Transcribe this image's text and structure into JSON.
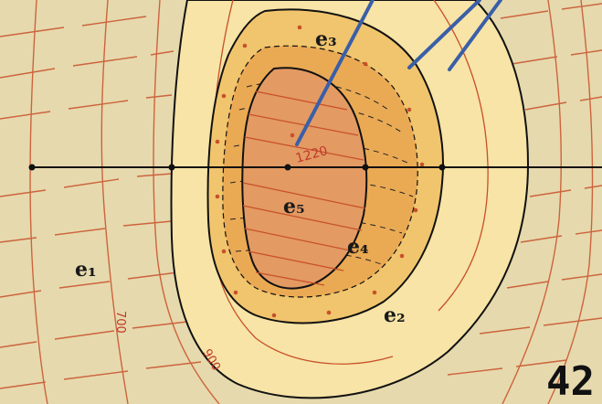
{
  "zones": [
    {
      "id": "e1",
      "label": "e₁",
      "fill": "#e6d9ad"
    },
    {
      "id": "e2",
      "label": "e₂",
      "fill": "#f7e4a6"
    },
    {
      "id": "e3",
      "label": "e₃",
      "fill": "#f1c56d"
    },
    {
      "id": "e4",
      "label": "e₄",
      "fill": "#eaaa54"
    },
    {
      "id": "e5",
      "label": "e₅",
      "fill": "#e39a63"
    }
  ],
  "contour_labels": [
    {
      "id": "c700",
      "text": "700"
    },
    {
      "id": "c900",
      "text": "900"
    },
    {
      "id": "c1220",
      "text": "1220"
    }
  ],
  "plate_number": "42",
  "colors": {
    "contour": "#c8502a",
    "boundary": "#111111",
    "leader": "#3a5fa8",
    "profile": "#111111"
  }
}
